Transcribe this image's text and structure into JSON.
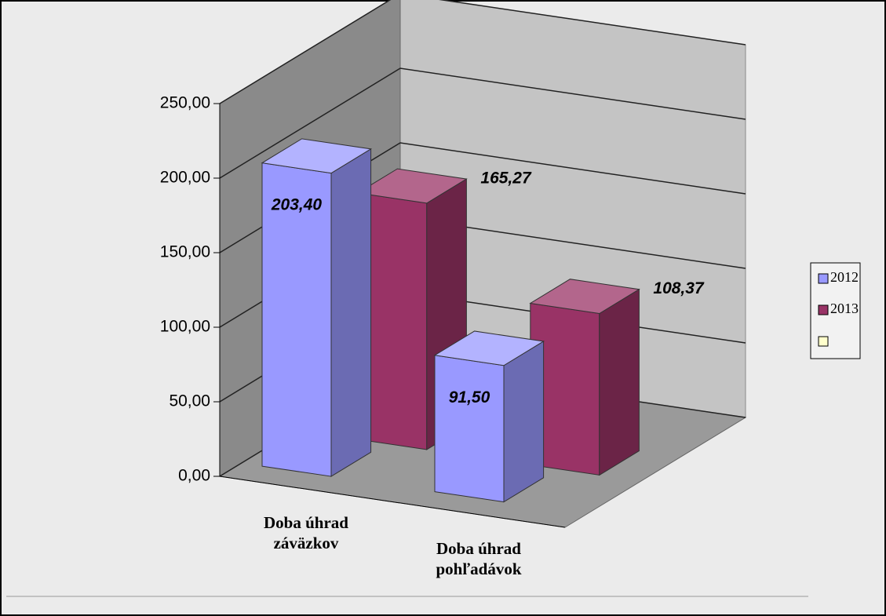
{
  "chart_data": {
    "type": "bar3d",
    "categories": [
      "Doba úhrad záväzkov",
      "Doba úhrad pohľadávok"
    ],
    "series": [
      {
        "name": "2012",
        "color": "#9999ff",
        "values": [
          203.4,
          91.5
        ],
        "value_labels": [
          "203,40",
          "91,50"
        ]
      },
      {
        "name": "2013",
        "color": "#993366",
        "values": [
          165.27,
          108.37
        ],
        "value_labels": [
          "165,27",
          "108,37"
        ]
      },
      {
        "color": "#ffffcc",
        "values": [
          null,
          null
        ]
      }
    ],
    "ylim": [
      0,
      250
    ],
    "yticks": [
      {
        "value": 0,
        "label": "0,00"
      },
      {
        "value": 50,
        "label": "50,00"
      },
      {
        "value": 100,
        "label": "100,00"
      },
      {
        "value": 150,
        "label": "150,00"
      },
      {
        "value": 200,
        "label": "200,00"
      },
      {
        "value": 250,
        "label": "250,00"
      }
    ],
    "grid": true,
    "legend": "right"
  }
}
